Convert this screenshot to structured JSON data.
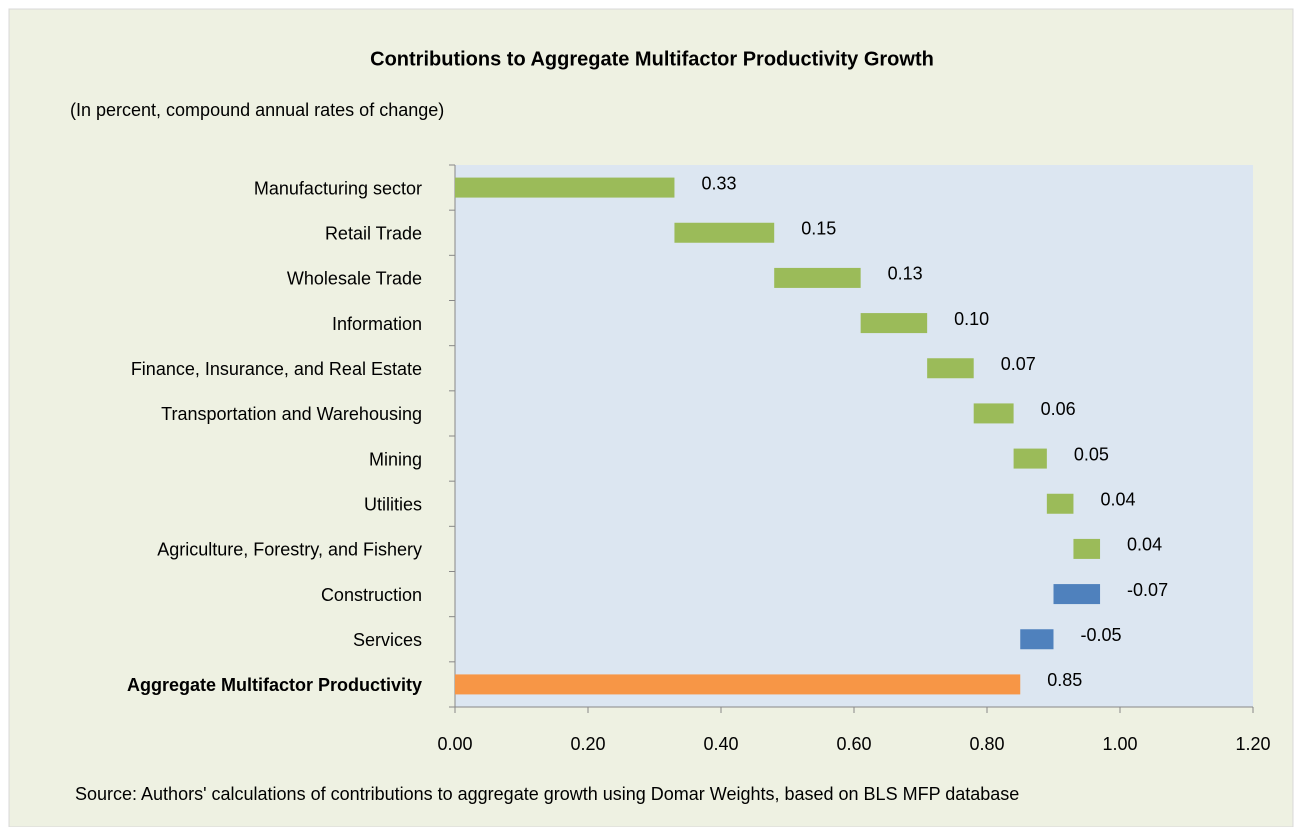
{
  "chart_data": {
    "type": "waterfall",
    "title": "Contributions to Aggregate Multifactor Productivity Growth",
    "subtitle": "(In percent, compound annual rates of change)",
    "source": "Source: Authors' calculations of contributions to aggregate growth using Domar Weights, based on BLS MFP database",
    "categories": [
      "Manufacturing sector",
      "Retail Trade",
      "Wholesale Trade",
      "Information",
      "Finance, Insurance, and Real Estate",
      "Transportation and Warehousing",
      "Mining",
      "Utilities",
      "Agriculture, Forestry, and Fishery",
      "Construction",
      "Services",
      "Aggregate Multifactor Productivity"
    ],
    "values": [
      0.33,
      0.15,
      0.13,
      0.1,
      0.07,
      0.06,
      0.05,
      0.04,
      0.04,
      -0.07,
      -0.05,
      0.85
    ],
    "value_labels": [
      "0.33",
      "0.15",
      "0.13",
      "0.10",
      "0.07",
      "0.06",
      "0.05",
      "0.04",
      "0.04",
      "-0.07",
      "-0.05",
      "0.85"
    ],
    "increase_color": "#9bbb59",
    "decrease_color": "#4f81bd",
    "total_color": "#f79646",
    "xlim": [
      0,
      1.2
    ],
    "xticks": [
      {
        "value": 0,
        "label": "0.00"
      },
      {
        "value": 0.2,
        "label": "0.20"
      },
      {
        "value": 0.4,
        "label": "0.40"
      },
      {
        "value": 0.6,
        "label": "0.60"
      },
      {
        "value": 0.8,
        "label": "0.80"
      },
      {
        "value": 1,
        "label": "1.00"
      },
      {
        "value": 1.2,
        "label": "1.20"
      }
    ]
  }
}
